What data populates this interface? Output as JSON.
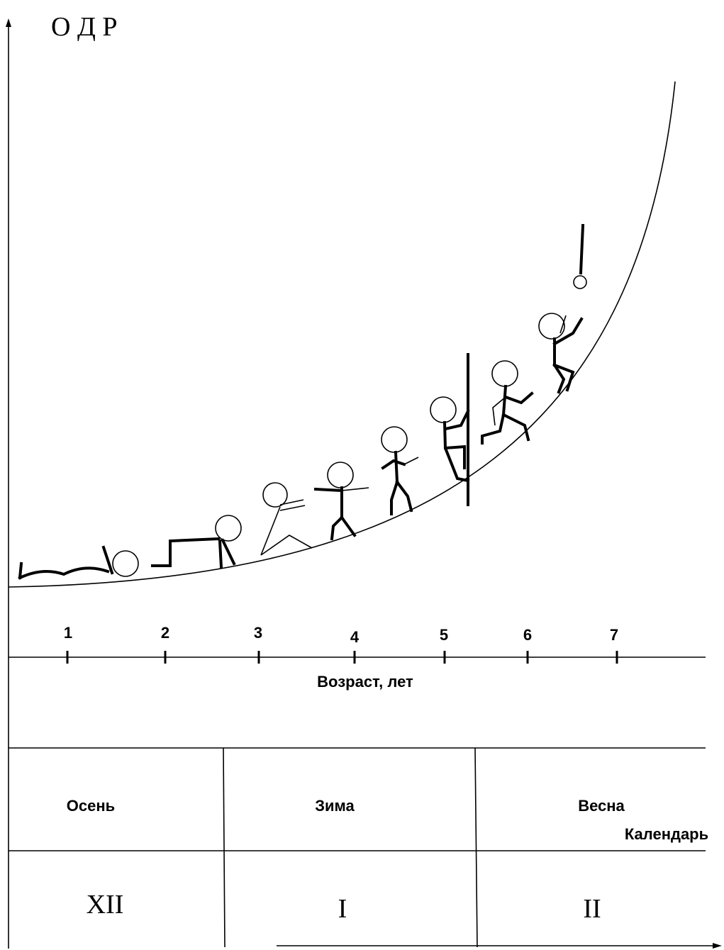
{
  "axis_label_y": "О Д Р",
  "age_ticks": [
    "1",
    "2",
    "3",
    "4",
    "5",
    "6",
    "7"
  ],
  "axis_label_x": "Возраст, лет",
  "seasons": [
    "Осень",
    "Зима",
    "Весна"
  ],
  "calendar_label": "Календарь",
  "months": [
    "XII",
    "I",
    "II"
  ]
}
